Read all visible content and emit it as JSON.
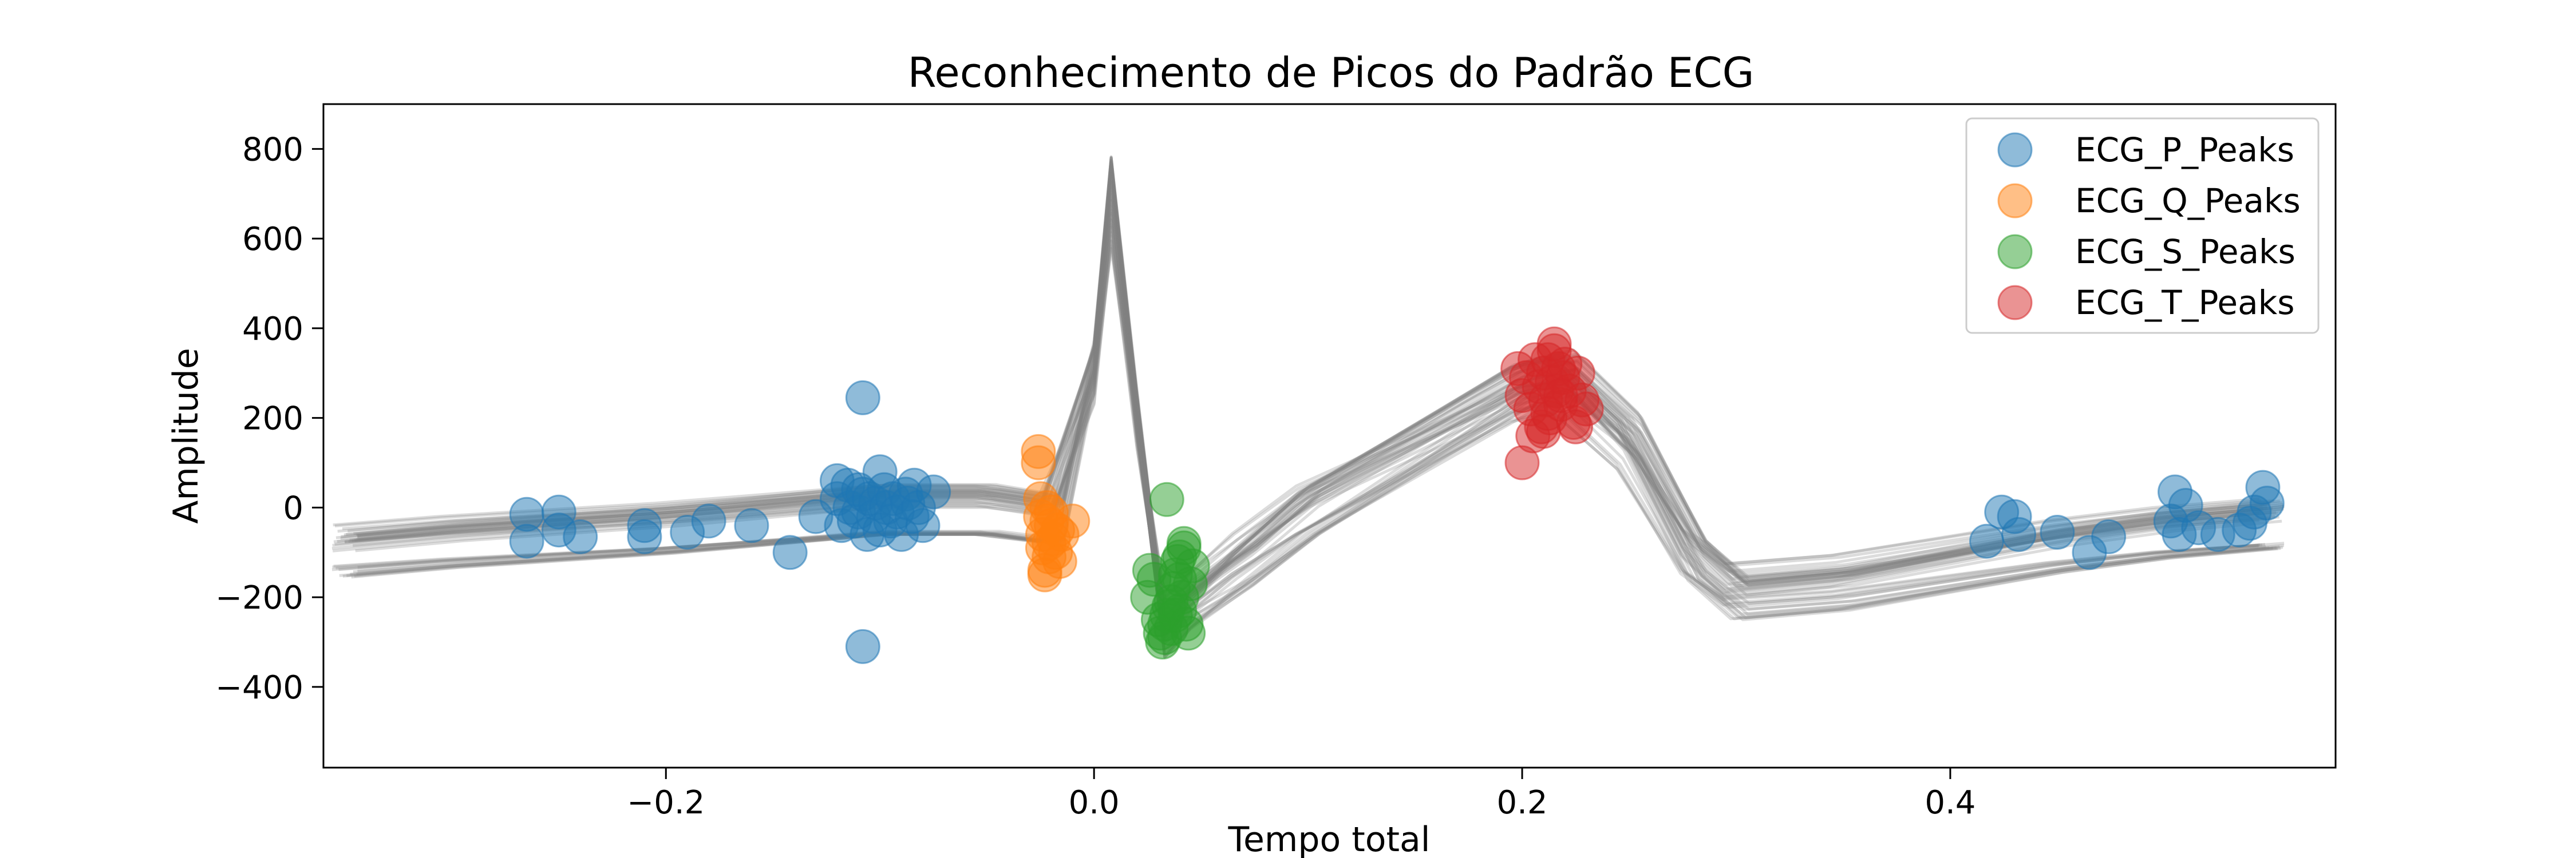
{
  "chart_data": {
    "type": "scatter",
    "title": "Reconhecimento de Picos do Padrão ECG",
    "xlabel": "Tempo total",
    "ylabel": "Amplitude",
    "xlim": [
      -0.36,
      0.58
    ],
    "ylim": [
      -580,
      900
    ],
    "x_ticks": [
      -0.2,
      0.0,
      0.2,
      0.4
    ],
    "x_tick_labels": [
      "−0.2",
      "0.0",
      "0.2",
      "0.4"
    ],
    "y_ticks": [
      -400,
      -200,
      0,
      200,
      400,
      600,
      800
    ],
    "y_tick_labels": [
      "−400",
      "−200",
      "0",
      "200",
      "400",
      "600",
      "800"
    ],
    "grid": false,
    "legend_position": "top-right",
    "template": {
      "color": "#808080",
      "x": [
        -0.35,
        -0.3,
        -0.2,
        -0.15,
        -0.1,
        -0.05,
        -0.02,
        0.0,
        0.008,
        0.02,
        0.033,
        0.045,
        0.07,
        0.1,
        0.15,
        0.2,
        0.22,
        0.25,
        0.28,
        0.3,
        0.35,
        0.4,
        0.45,
        0.5,
        0.55
      ],
      "y": [
        -90,
        -70,
        -40,
        -20,
        0,
        0,
        -20,
        300,
        680,
        200,
        -260,
        -200,
        -110,
        0,
        130,
        260,
        280,
        150,
        -100,
        -180,
        -160,
        -120,
        -80,
        -50,
        -30
      ]
    },
    "series": [
      {
        "name": "ECG_P_Peaks",
        "color": "#1f77b4",
        "x": [
          -0.265,
          -0.265,
          -0.25,
          -0.25,
          -0.24,
          -0.21,
          -0.21,
          -0.19,
          -0.18,
          -0.16,
          -0.142,
          -0.13,
          -0.12,
          -0.12,
          -0.118,
          -0.115,
          -0.114,
          -0.112,
          -0.11,
          -0.11,
          -0.108,
          -0.106,
          -0.105,
          -0.103,
          -0.102,
          -0.1,
          -0.1,
          -0.098,
          -0.097,
          -0.095,
          -0.094,
          -0.092,
          -0.09,
          -0.088,
          -0.087,
          -0.085,
          -0.084,
          -0.082,
          -0.08,
          -0.075,
          -0.108,
          -0.108,
          0.417,
          0.424,
          0.432,
          0.43,
          0.45,
          0.465,
          0.474,
          0.503,
          0.505,
          0.507,
          0.51,
          0.516,
          0.525,
          0.535,
          0.54,
          0.542,
          0.546,
          0.548
        ],
        "y": [
          -15,
          -75,
          -10,
          -50,
          -65,
          -40,
          -65,
          -55,
          -30,
          -40,
          -100,
          -20,
          60,
          20,
          -40,
          50,
          0,
          -30,
          40,
          -10,
          30,
          -60,
          20,
          -20,
          10,
          80,
          -50,
          40,
          0,
          -30,
          20,
          -10,
          -60,
          30,
          10,
          -20,
          50,
          0,
          -40,
          35,
          245,
          -310,
          -75,
          -10,
          -60,
          -20,
          -55,
          -100,
          -65,
          -30,
          35,
          -60,
          5,
          -45,
          -60,
          -50,
          -35,
          -10,
          45,
          10
        ]
      },
      {
        "name": "ECG_Q_Peaks",
        "color": "#ff7f0e",
        "x": [
          -0.026,
          -0.026,
          -0.025,
          -0.025,
          -0.024,
          -0.024,
          -0.023,
          -0.023,
          -0.022,
          -0.022,
          -0.021,
          -0.021,
          -0.02,
          -0.02,
          -0.019,
          -0.018,
          -0.017,
          -0.016,
          -0.015,
          -0.01
        ],
        "y": [
          125,
          100,
          20,
          -20,
          -60,
          -90,
          -140,
          -150,
          0,
          -30,
          -80,
          -110,
          -40,
          -10,
          -70,
          -100,
          -50,
          -120,
          -60,
          -30
        ]
      },
      {
        "name": "ECG_S_Peaks",
        "color": "#2ca02c",
        "x": [
          0.025,
          0.026,
          0.028,
          0.03,
          0.031,
          0.032,
          0.033,
          0.033,
          0.034,
          0.035,
          0.036,
          0.037,
          0.038,
          0.039,
          0.04,
          0.04,
          0.041,
          0.042,
          0.043,
          0.044,
          0.045,
          0.046,
          0.034,
          0.036,
          0.038,
          0.04,
          0.042
        ],
        "y": [
          -200,
          -140,
          -160,
          -250,
          -280,
          -300,
          -290,
          -260,
          -240,
          -220,
          -270,
          -180,
          -150,
          -120,
          -110,
          -230,
          -200,
          -90,
          -260,
          -280,
          -170,
          -130,
          18,
          -210,
          -240,
          -160,
          -80
        ]
      },
      {
        "name": "ECG_T_Peaks",
        "color": "#d62728",
        "x": [
          0.198,
          0.2,
          0.202,
          0.204,
          0.206,
          0.208,
          0.209,
          0.21,
          0.211,
          0.212,
          0.213,
          0.214,
          0.215,
          0.216,
          0.217,
          0.218,
          0.219,
          0.22,
          0.222,
          0.224,
          0.226,
          0.228,
          0.23,
          0.205,
          0.21,
          0.2,
          0.225,
          0.215,
          0.212,
          0.218
        ],
        "y": [
          310,
          250,
          290,
          220,
          330,
          270,
          180,
          300,
          240,
          330,
          200,
          280,
          350,
          260,
          310,
          230,
          290,
          320,
          260,
          190,
          300,
          240,
          220,
          160,
          170,
          100,
          180,
          365,
          210,
          250
        ]
      }
    ]
  }
}
